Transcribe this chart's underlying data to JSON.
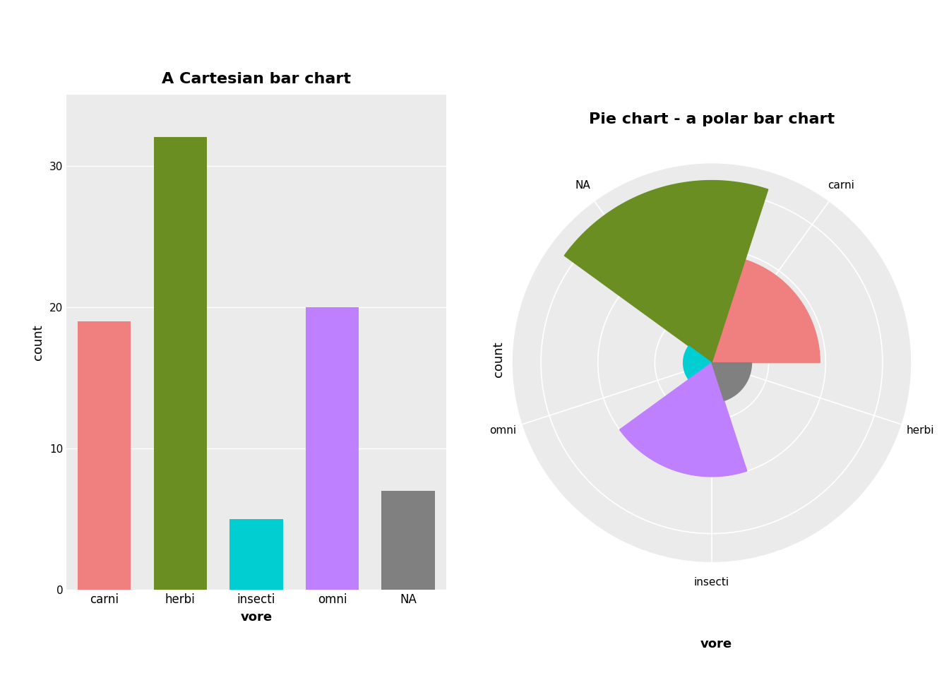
{
  "categories": [
    "carni",
    "herbi",
    "insecti",
    "omni",
    "NA"
  ],
  "values": [
    19,
    32,
    5,
    20,
    7
  ],
  "bar_colors": [
    "#F08080",
    "#6B8E23",
    "#00CED1",
    "#BF80FF",
    "#808080"
  ],
  "bar_chart_title": "A Cartesian bar chart",
  "polar_chart_title": "Pie chart - a polar bar chart",
  "xlabel": "vore",
  "ylabel": "count",
  "ylim_bar": [
    0,
    35
  ],
  "yticks_bar": [
    0,
    10,
    20,
    30
  ],
  "background_color": "#EBEBEB",
  "grid_color": "white",
  "polar_rmax": 35,
  "polar_rticks": [
    0,
    10,
    20,
    30
  ],
  "cat_order_cw": [
    "carni",
    "herbi",
    "insecti",
    "omni",
    "NA"
  ]
}
